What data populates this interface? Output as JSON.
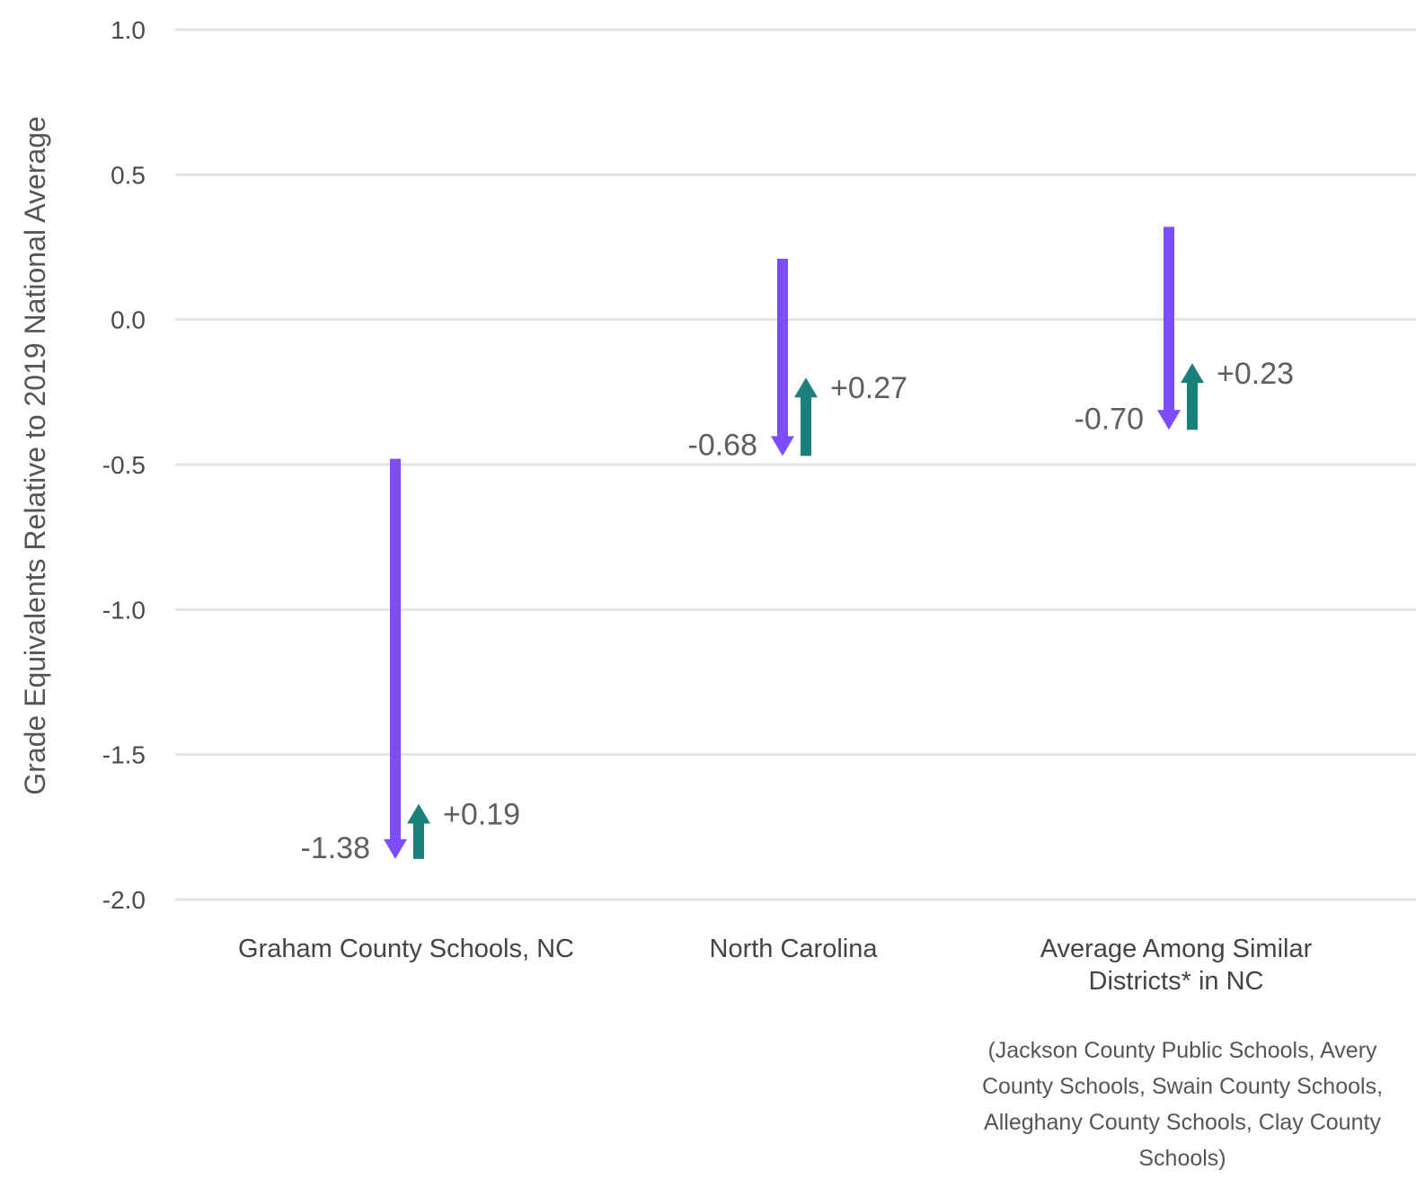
{
  "chart_data": {
    "type": "arrow",
    "title": "",
    "xlabel": "",
    "ylabel": "Grade Equivalents Relative to 2019 National Average",
    "ylim": [
      -2.0,
      1.0
    ],
    "yticks": [
      "1.0",
      "0.5",
      "0.0",
      "-0.5",
      "-1.0",
      "-1.5",
      "-2.0"
    ],
    "grid": true,
    "colors": {
      "decline": "#7b4dff",
      "recovery": "#1b7f7a"
    },
    "groups": [
      {
        "lines": [
          "Graham County Schools, NC"
        ],
        "note_lines": [],
        "start": -0.48,
        "decline": -1.38,
        "recovery": 0.19,
        "decline_label": "-1.38",
        "recovery_label": "+0.19"
      },
      {
        "lines": [
          "North Carolina"
        ],
        "note_lines": [],
        "start": 0.21,
        "decline": -0.68,
        "recovery": 0.27,
        "decline_label": "-0.68",
        "recovery_label": "+0.27"
      },
      {
        "lines": [
          "Average Among Similar",
          "Districts* in NC"
        ],
        "note_lines": [
          "(Jackson County Public Schools, Avery",
          "County Schools, Swain County Schools,",
          "Alleghany County Schools, Clay County",
          "Schools)"
        ],
        "start": 0.32,
        "decline": -0.7,
        "recovery": 0.23,
        "decline_label": "-0.70",
        "recovery_label": "+0.23"
      }
    ]
  }
}
